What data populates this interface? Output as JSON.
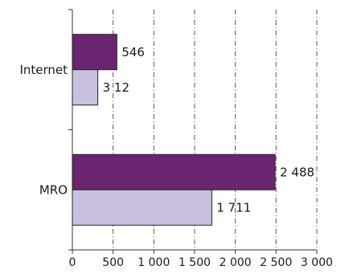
{
  "chart_data": {
    "type": "bar",
    "orientation": "horizontal",
    "categories": [
      "Internet",
      "MRO"
    ],
    "series": [
      {
        "values": [
          546,
          2488
        ],
        "value_labels": [
          "546",
          "2 488"
        ],
        "color": "#6b2470"
      },
      {
        "values": [
          312,
          1711
        ],
        "value_labels": [
          "3 12",
          "1 711"
        ],
        "color": "#c9c1de"
      }
    ],
    "xlim": [
      0,
      3000
    ],
    "x_ticks": [
      0,
      500,
      1000,
      1500,
      2000,
      2500,
      3000
    ],
    "x_tick_labels": [
      "0",
      "500",
      "1 000",
      "1 500",
      "2 000",
      "2 500",
      "3 000"
    ],
    "grid": "vertical dashed",
    "legend": "none",
    "title": "",
    "xlabel": "",
    "ylabel": ""
  }
}
